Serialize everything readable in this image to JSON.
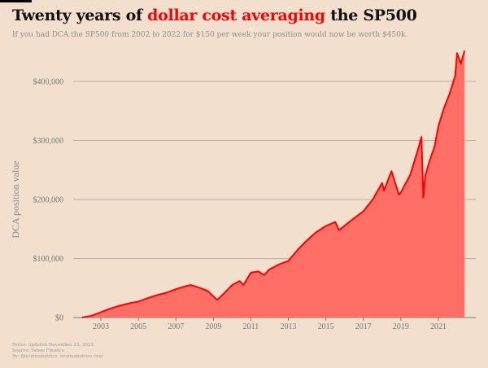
{
  "header": {
    "title_pre": "Twenty years of ",
    "title_highlight": "dollar cost averaging",
    "title_post": " the SP500",
    "subtitle": "If you had DCA the SP500 from 2002 to 2022 for $150 per week your position would now be worth $450k."
  },
  "notes": {
    "line1": "Notes: updated November 23, 2022",
    "line2": "Source: Yahoo Finance",
    "line3": "By: @ecoinometrics, ecoinometrics.com"
  },
  "colors": {
    "line": "#ff0000",
    "fill": "#ff6f66",
    "background": "#f2dfcd",
    "grid": "#bbb0a4"
  },
  "chart_data": {
    "type": "area",
    "title": "Twenty years of dollar cost averaging the SP500",
    "ylabel": "DCA position value",
    "xlabel": "",
    "grid": "horizontal",
    "ylim": [
      0,
      460000
    ],
    "xlim": [
      2001.3,
      2023.4
    ],
    "yticks": [
      0,
      100000,
      200000,
      300000,
      400000
    ],
    "ytick_labels": [
      "$0",
      "$100,000",
      "$200,000",
      "$300,000",
      "$400,000"
    ],
    "xticks": [
      2003,
      2005,
      2007,
      2009,
      2011,
      2013,
      2015,
      2017,
      2019,
      2021
    ],
    "xtick_labels": [
      "2003",
      "2005",
      "2007",
      "2009",
      "2011",
      "2013",
      "2015",
      "2017",
      "2019",
      "2021"
    ],
    "x": [
      2002.0,
      2002.5,
      2003.0,
      2003.5,
      2004.0,
      2004.5,
      2005.0,
      2005.5,
      2006.0,
      2006.5,
      2007.0,
      2007.5,
      2007.8,
      2008.3,
      2008.7,
      2009.2,
      2009.6,
      2010.0,
      2010.4,
      2010.6,
      2011.0,
      2011.4,
      2011.7,
      2012.0,
      2012.5,
      2013.0,
      2013.5,
      2014.0,
      2014.5,
      2015.0,
      2015.5,
      2015.7,
      2016.1,
      2016.5,
      2017.0,
      2017.5,
      2018.0,
      2018.1,
      2018.5,
      2018.9,
      2019.0,
      2019.5,
      2019.9,
      2020.1,
      2020.2,
      2020.3,
      2020.5,
      2020.8,
      2021.0,
      2021.3,
      2021.6,
      2021.9,
      2022.0,
      2022.2,
      2022.4
    ],
    "values": [
      0,
      3000,
      9000,
      15000,
      20000,
      24000,
      27000,
      33000,
      38000,
      42000,
      48000,
      53000,
      55000,
      50000,
      45000,
      30000,
      42000,
      55000,
      62000,
      55000,
      76000,
      78000,
      72000,
      82000,
      90000,
      96000,
      115000,
      131000,
      145000,
      155000,
      162000,
      148000,
      158000,
      168000,
      180000,
      200000,
      228000,
      215000,
      248000,
      208000,
      212000,
      242000,
      283000,
      306000,
      203000,
      240000,
      262000,
      290000,
      324000,
      355000,
      379000,
      410000,
      448000,
      430000,
      452000
    ]
  }
}
